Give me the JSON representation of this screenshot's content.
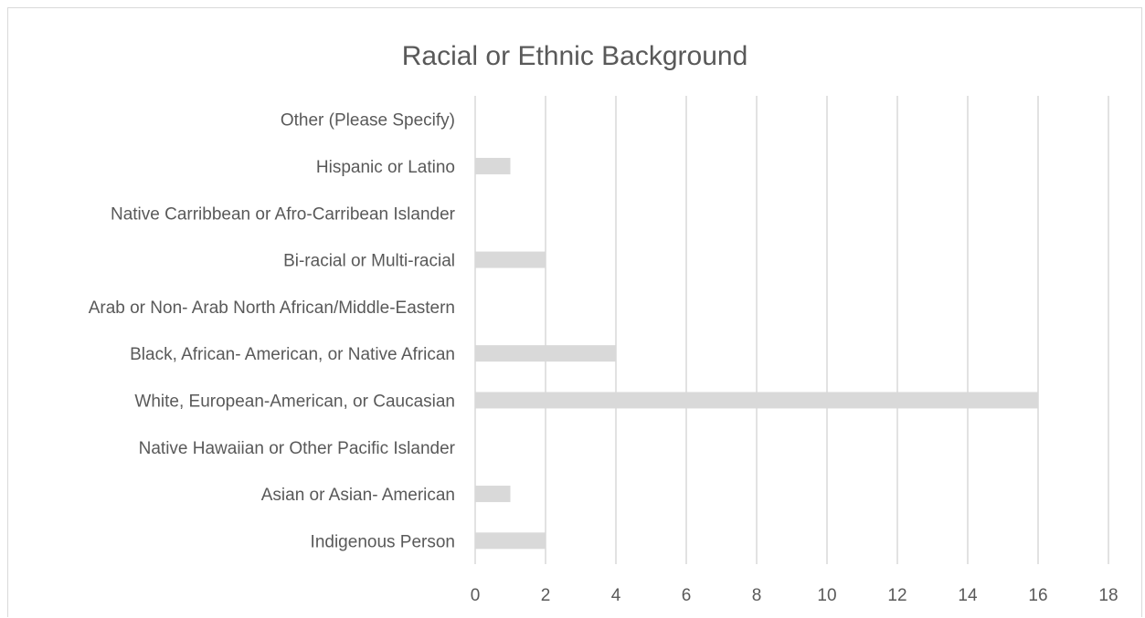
{
  "chart_data": {
    "type": "bar",
    "orientation": "horizontal",
    "title": "Racial or Ethnic Background",
    "categories": [
      "Other (Please Specify)",
      "Hispanic or Latino",
      "Native Carribbean or Afro-Carribean Islander",
      "Bi-racial or Multi-racial",
      "Arab or Non- Arab North African/Middle-Eastern",
      "Black, African- American, or Native African",
      "White, European-American, or Caucasian",
      "Native Hawaiian or Other Pacific Islander",
      "Asian or Asian- American",
      "Indigenous Person"
    ],
    "values": [
      0,
      1,
      0,
      2,
      0,
      4,
      16,
      0,
      1,
      2
    ],
    "xlim": [
      0,
      18
    ],
    "xticks": [
      "0",
      "2",
      "4",
      "6",
      "8",
      "10",
      "12",
      "14",
      "16",
      "18"
    ],
    "grid": true,
    "bar_color": "#d9d9d9",
    "grid_color": "#d9d9d9",
    "text_color": "#595959"
  }
}
